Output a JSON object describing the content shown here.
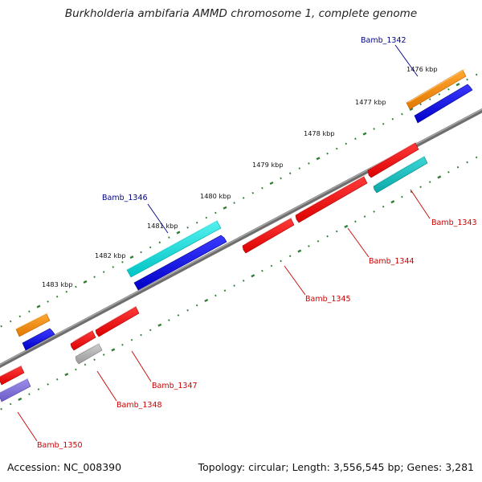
{
  "title": "Burkholderia ambifaria AMMD chromosome 1, complete genome",
  "accession_label": "Accession: NC_008390",
  "summary_label": "Topology: circular; Length: 3,556,545 bp; Genes: 3,281",
  "colors": {
    "backbone": "#808080",
    "tick": "#2e7d32",
    "gene_forward_label": "#00008b",
    "gene_reverse_label": "#cc0000",
    "cds_blue": "#0000ee",
    "cds_red": "#ff1111",
    "cds_orange": "#ff8c00",
    "cds_cyan": "#00dede",
    "cds_teal": "#11c4c4",
    "cds_gray": "#b0b0b0",
    "cds_slate": "#7e6fd8"
  },
  "scale_labels": [
    {
      "id": "1476",
      "text": "1476 kbp"
    },
    {
      "id": "1477",
      "text": "1477 kbp"
    },
    {
      "id": "1478",
      "text": "1478 kbp"
    },
    {
      "id": "1479",
      "text": "1479 kbp"
    },
    {
      "id": "1480",
      "text": "1480 kbp"
    },
    {
      "id": "1481",
      "text": "1481 kbp"
    },
    {
      "id": "1482",
      "text": "1482 kbp"
    },
    {
      "id": "1483",
      "text": "1483 kbp"
    }
  ],
  "gene_labels": [
    {
      "id": "bamb_1342",
      "text": "Bamb_1342",
      "strand": "forward"
    },
    {
      "id": "bamb_1346",
      "text": "Bamb_1346",
      "strand": "forward"
    },
    {
      "id": "bamb_1343",
      "text": "Bamb_1343",
      "strand": "reverse"
    },
    {
      "id": "bamb_1344",
      "text": "Bamb_1344",
      "strand": "reverse"
    },
    {
      "id": "bamb_1345",
      "text": "Bamb_1345",
      "strand": "reverse"
    },
    {
      "id": "bamb_1347",
      "text": "Bamb_1347",
      "strand": "reverse"
    },
    {
      "id": "bamb_1348",
      "text": "Bamb_1348",
      "strand": "reverse"
    },
    {
      "id": "bamb_1350",
      "text": "Bamb_1350",
      "strand": "reverse"
    }
  ]
}
